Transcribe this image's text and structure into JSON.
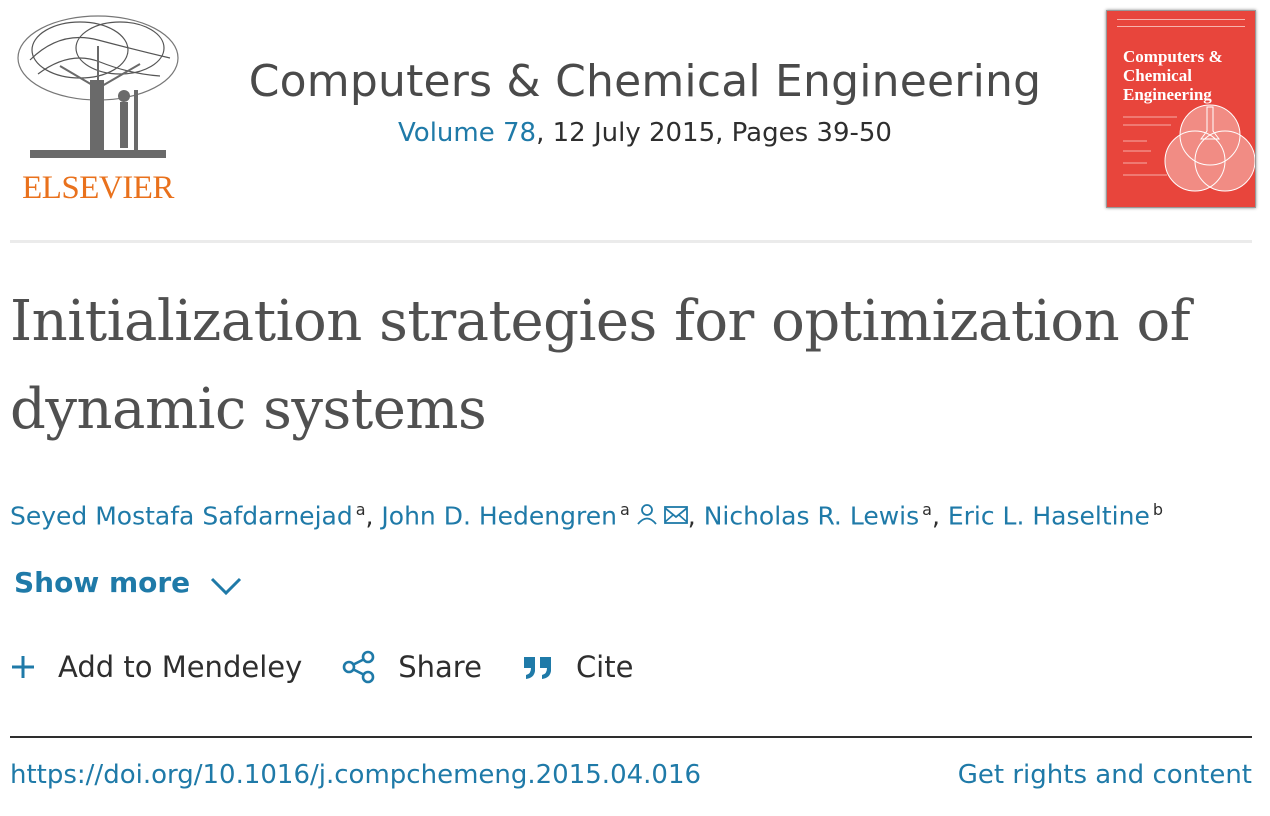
{
  "publisher": {
    "name": "ELSEVIER"
  },
  "journal": {
    "title": "Computers & Chemical Engineering",
    "volume_link": "Volume 78",
    "meta_rest": ", 12 July 2015, Pages 39-50",
    "cover_title": "Computers & Chemical Engineering"
  },
  "article": {
    "title": "Initialization strategies for optimization of dynamic systems",
    "authors": [
      {
        "name": "Seyed Mostafa Safdarnejad",
        "aff": "a"
      },
      {
        "name": "John D. Hedengren",
        "aff": "a"
      },
      {
        "name": "Nicholas R. Lewis",
        "aff": "a"
      },
      {
        "name": "Eric L. Haseltine",
        "aff": "b"
      }
    ],
    "separator": ","
  },
  "toggle": {
    "show_more": "Show more"
  },
  "actions": {
    "mendeley": "Add to Mendeley",
    "share": "Share",
    "cite": "Cite"
  },
  "links": {
    "doi": "https://doi.org/10.1016/j.compchemeng.2015.04.016",
    "rights": "Get rights and content"
  },
  "colors": {
    "link": "#1f7aa8",
    "elsevier_orange": "#e9711c",
    "cover_red": "#e8453c"
  },
  "icons": {
    "corresponding_author": "person-icon",
    "email": "envelope-icon",
    "show_more": "chevron-down-icon",
    "mendeley": "plus-icon",
    "share": "share-icon",
    "cite": "quote-icon"
  }
}
